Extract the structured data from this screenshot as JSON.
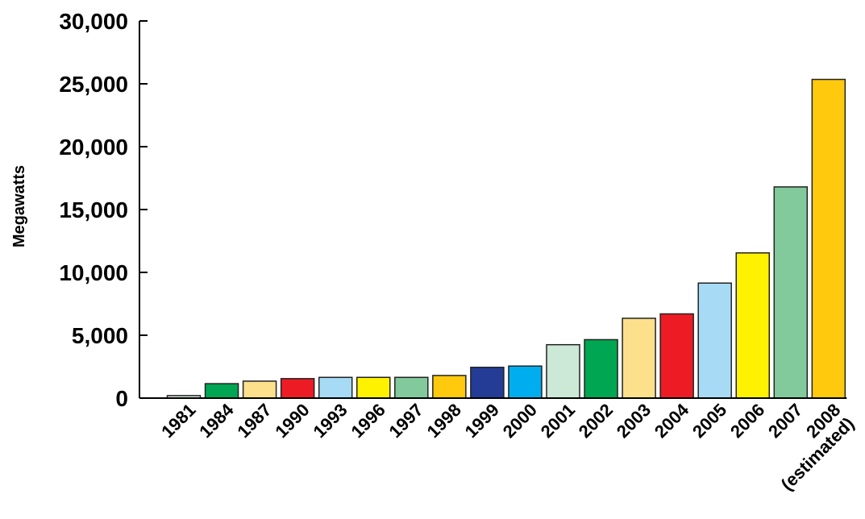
{
  "chart_data": {
    "type": "bar",
    "title": "",
    "xlabel": "",
    "ylabel": "Megawatts",
    "ylim": [
      0,
      30000
    ],
    "yticks": [
      0,
      5000,
      10000,
      15000,
      20000,
      25000,
      30000
    ],
    "ytick_labels": [
      "0",
      "5,000",
      "10,000",
      "15,000",
      "20,000",
      "25,000",
      "30,000"
    ],
    "grid": false,
    "legend": "none",
    "categories": [
      {
        "label": "1981",
        "sublabel": ""
      },
      {
        "label": "1984",
        "sublabel": ""
      },
      {
        "label": "1987",
        "sublabel": ""
      },
      {
        "label": "1990",
        "sublabel": ""
      },
      {
        "label": "1993",
        "sublabel": ""
      },
      {
        "label": "1996",
        "sublabel": ""
      },
      {
        "label": "1997",
        "sublabel": ""
      },
      {
        "label": "1998",
        "sublabel": ""
      },
      {
        "label": "1999",
        "sublabel": ""
      },
      {
        "label": "2000",
        "sublabel": ""
      },
      {
        "label": "2001",
        "sublabel": ""
      },
      {
        "label": "2002",
        "sublabel": ""
      },
      {
        "label": "2003",
        "sublabel": ""
      },
      {
        "label": "2004",
        "sublabel": ""
      },
      {
        "label": "2005",
        "sublabel": ""
      },
      {
        "label": "2006",
        "sublabel": ""
      },
      {
        "label": "2007",
        "sublabel": ""
      },
      {
        "label": "2008",
        "sublabel": "(estimated)"
      }
    ],
    "values": [
      200,
      1150,
      1350,
      1550,
      1650,
      1650,
      1650,
      1800,
      2450,
      2550,
      4250,
      4650,
      6350,
      6700,
      9150,
      11550,
      16800,
      25350
    ],
    "colors": [
      "#d9eadf",
      "#00a651",
      "#fde08c",
      "#ed1c24",
      "#a7dbf5",
      "#fff200",
      "#82ca9c",
      "#ffc90e",
      "#243c96",
      "#00aeef",
      "#cce8d6",
      "#00a651",
      "#fde08c",
      "#ed1c24",
      "#a7dbf5",
      "#fff200",
      "#82ca9c",
      "#ffc90e"
    ]
  }
}
